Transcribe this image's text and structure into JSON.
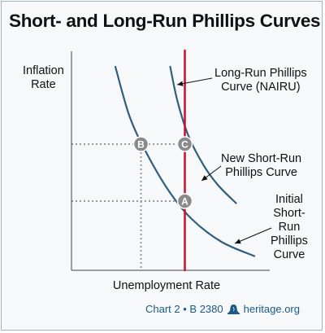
{
  "chart_data": {
    "type": "line",
    "title": "Short- and Long-Run Phillips Curves",
    "xlabel": "Unemployment Rate",
    "ylabel": "Inflation Rate",
    "xlim": [
      0,
      100
    ],
    "ylim": [
      0,
      100
    ],
    "grid": false,
    "series": [
      {
        "name": "Initial Short-Run Phillips Curve",
        "color": "#2f5e7e",
        "points": [
          [
            24,
            100
          ],
          [
            32,
            75
          ],
          [
            42,
            56
          ],
          [
            54,
            38
          ],
          [
            66,
            25
          ],
          [
            82,
            14
          ],
          [
            100,
            7
          ]
        ]
      },
      {
        "name": "New Short-Run Phillips Curve",
        "color": "#2f5e7e",
        "points": [
          [
            54,
            100
          ],
          [
            58,
            83
          ],
          [
            64,
            66
          ],
          [
            72,
            52
          ],
          [
            80,
            42
          ],
          [
            90,
            33
          ]
        ]
      },
      {
        "name": "Long-Run Phillips Curve (NAIRU)",
        "color": "#c8102e",
        "points": [
          [
            62,
            108
          ],
          [
            62,
            0
          ]
        ]
      }
    ],
    "points": [
      {
        "label": "B",
        "x": 38,
        "y": 62
      },
      {
        "label": "C",
        "x": 62,
        "y": 62
      },
      {
        "label": "A",
        "x": 62,
        "y": 34
      }
    ],
    "guides": [
      {
        "x": 38,
        "y": 62
      },
      {
        "x": 62,
        "y": 62
      },
      {
        "x": 62,
        "y": 34
      }
    ],
    "annotations": {
      "long_run": [
        "Long-Run Phillips",
        "Curve (NAIRU)"
      ],
      "new_short_run": [
        "New Short-Run",
        "Phillips Curve"
      ],
      "initial_short_run": [
        "Initial",
        "Short-",
        "Run",
        "Phillips",
        "Curve"
      ]
    }
  },
  "ylabel_lines": [
    "Inflation",
    "Rate"
  ],
  "footer": {
    "chart_ref": "Chart 2 • B 2380",
    "site": "heritage.org",
    "icon": "liberty-bell-icon"
  }
}
